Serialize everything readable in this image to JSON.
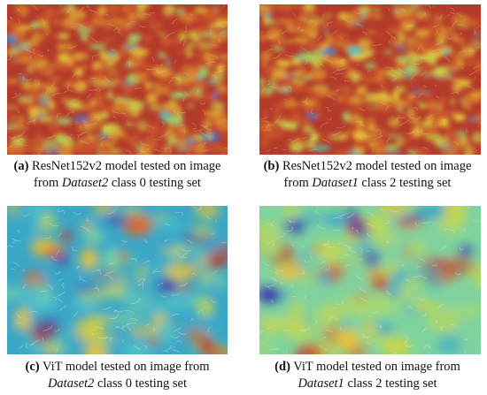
{
  "panels": [
    {
      "id": "a",
      "tag": "(a)",
      "line1": "ResNet152v2 model tested on image",
      "line2_pre": "from ",
      "dataset": "Dataset2",
      "line2_post": " class 0 testing set",
      "colormap": "warm",
      "palette": [
        "#b43a2a",
        "#cf5a2a",
        "#d98c2e",
        "#e6c23a",
        "#c9d24a",
        "#9fcf6a",
        "#5fc2b0",
        "#2f7fd0"
      ]
    },
    {
      "id": "b",
      "tag": "(b)",
      "line1": "ResNet152v2 model tested on image",
      "line2_pre": "from ",
      "dataset": "Dataset1",
      "line2_post": " class 2 testing set",
      "colormap": "warm",
      "palette": [
        "#b43a2a",
        "#cf5a2a",
        "#d98c2e",
        "#e6c23a",
        "#c9d24a",
        "#9fcf6a",
        "#5fc2b0",
        "#2f7fd0"
      ]
    },
    {
      "id": "c",
      "tag": "(c)",
      "line1": "ViT model tested on image from",
      "line2_pre": "",
      "dataset": "Dataset2",
      "line2_post": " class 0 testing set",
      "colormap": "cool",
      "palette": [
        "#3aa7c7",
        "#4fc3c9",
        "#7fd39f",
        "#c9d64a",
        "#e6c23a",
        "#d9682e",
        "#c23a2a",
        "#3a3fb0"
      ]
    },
    {
      "id": "d",
      "tag": "(d)",
      "line1": "ViT model tested on image from",
      "line2_pre": "",
      "dataset": "Dataset1",
      "line2_post": " class 2 testing set",
      "colormap": "cool",
      "palette": [
        "#7fd39f",
        "#a8d870",
        "#c9d64a",
        "#3aa7c7",
        "#e6c23a",
        "#d9682e",
        "#c23a2a",
        "#3a3fb0"
      ]
    }
  ]
}
